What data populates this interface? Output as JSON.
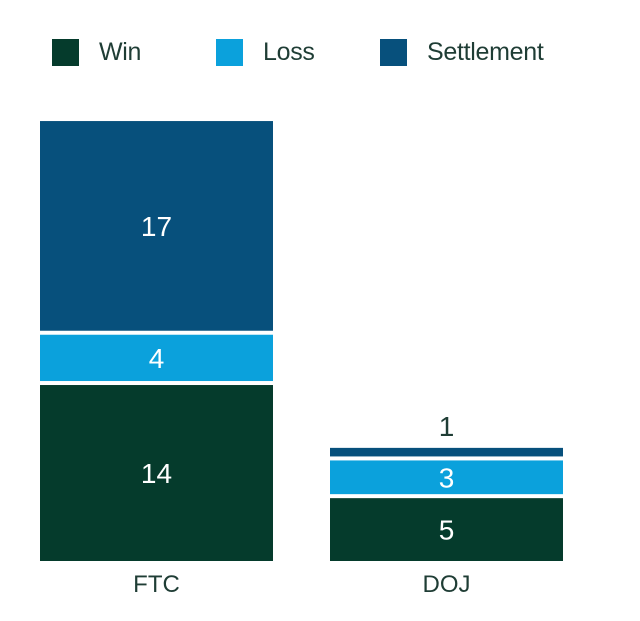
{
  "chart_data": {
    "type": "bar",
    "stacked": true,
    "categories": [
      "FTC",
      "DOJ"
    ],
    "series": [
      {
        "name": "Win",
        "values": [
          14,
          5
        ],
        "color": "#053b2c"
      },
      {
        "name": "Loss",
        "values": [
          4,
          3
        ],
        "color": "#0ba1dc"
      },
      {
        "name": "Settlement",
        "values": [
          17,
          1
        ],
        "color": "#07507c"
      }
    ],
    "legend_position": "top",
    "grid": false,
    "ylim": [
      0,
      35
    ]
  }
}
